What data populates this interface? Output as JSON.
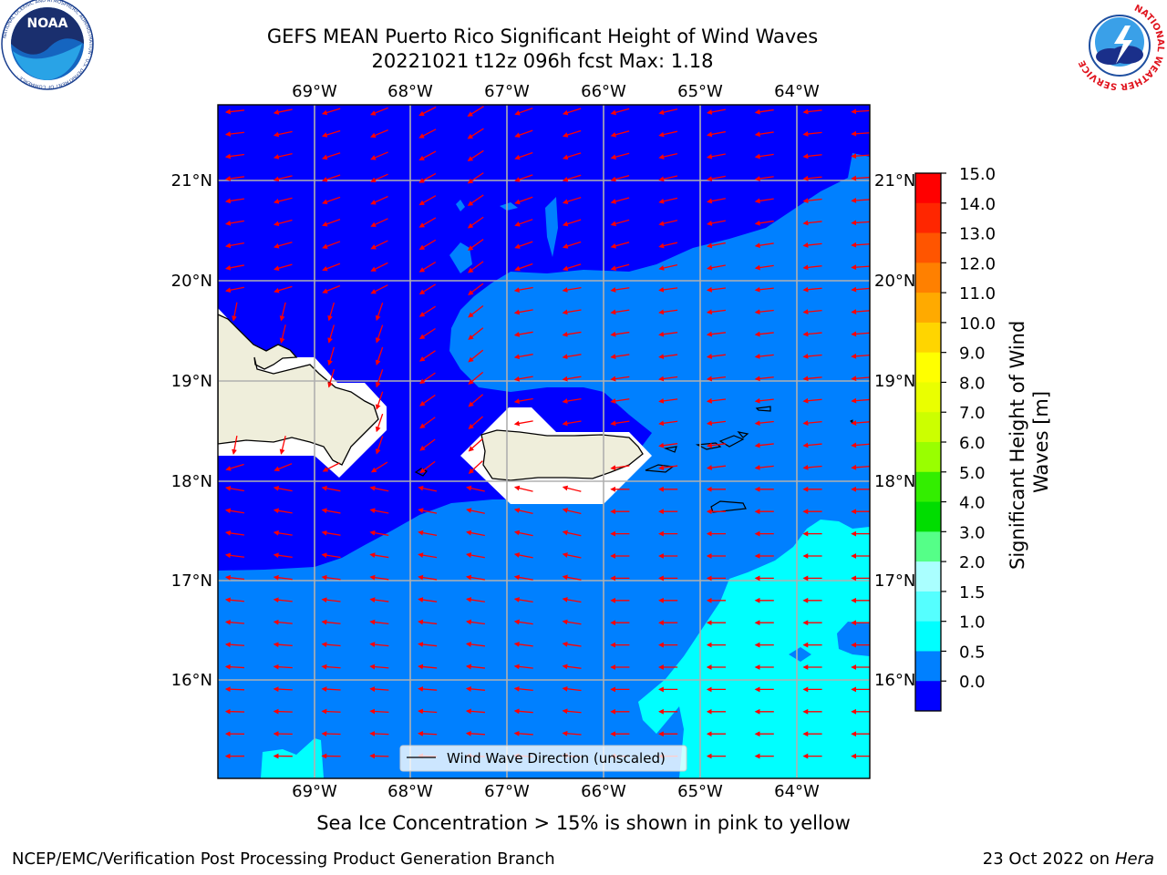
{
  "header": {
    "title_line1": "GEFS MEAN Puerto Rico Significant Height of Wind Waves",
    "title_line2": "20221021 t12z 096h fcst   Max: 1.18"
  },
  "map": {
    "lon_labels": [
      "69°W",
      "68°W",
      "67°W",
      "66°W",
      "65°W",
      "64°W"
    ],
    "lat_labels": [
      "21°N",
      "20°N",
      "19°N",
      "18°N",
      "17°N",
      "16°N"
    ],
    "legend_label": "Wind Wave Direction (unscaled)",
    "colors": {
      "band_0_0.5": "#0000ff",
      "band_0.5_1.0": "#0080ff",
      "band_1.0_1.5": "#00ffff",
      "land": "#efeedb",
      "masked": "#ffffff",
      "arrow": "#ff0000",
      "grid": "#b0b0b0"
    }
  },
  "colorbar": {
    "label": "Significant Height of Wind Waves [m]",
    "ticks": [
      "15.0",
      "14.0",
      "13.0",
      "12.0",
      "11.0",
      "10.0",
      "9.0",
      "8.0",
      "7.0",
      "6.0",
      "5.0",
      "4.0",
      "3.0",
      "2.0",
      "1.5",
      "1.0",
      "0.5",
      "0.0"
    ],
    "colors": [
      "#ff0000",
      "#ff2600",
      "#ff5500",
      "#ff8000",
      "#ffaa00",
      "#ffd500",
      "#ffff00",
      "#eaff00",
      "#ccff00",
      "#99ff00",
      "#33ee00",
      "#00dd00",
      "#55ff88",
      "#aaffff",
      "#55ffff",
      "#00ffff",
      "#0080ff",
      "#0000ff"
    ]
  },
  "subtitle": "Sea Ice Concentration > 15% is shown in pink to yellow",
  "footer": {
    "left": "NCEP/EMC/Verification Post Processing Product Generation Branch",
    "right_prefix": "23 Oct 2022 on ",
    "right_machine": "Hera"
  },
  "logos": {
    "noaa": "NOAA",
    "noaa_ring": "NATIONAL OCEANIC AND ATMOSPHERIC ADMINISTRATION · U.S. DEPARTMENT OF COMMERCE ·",
    "nws_ring": "NATIONAL WEATHER SERVICE"
  }
}
